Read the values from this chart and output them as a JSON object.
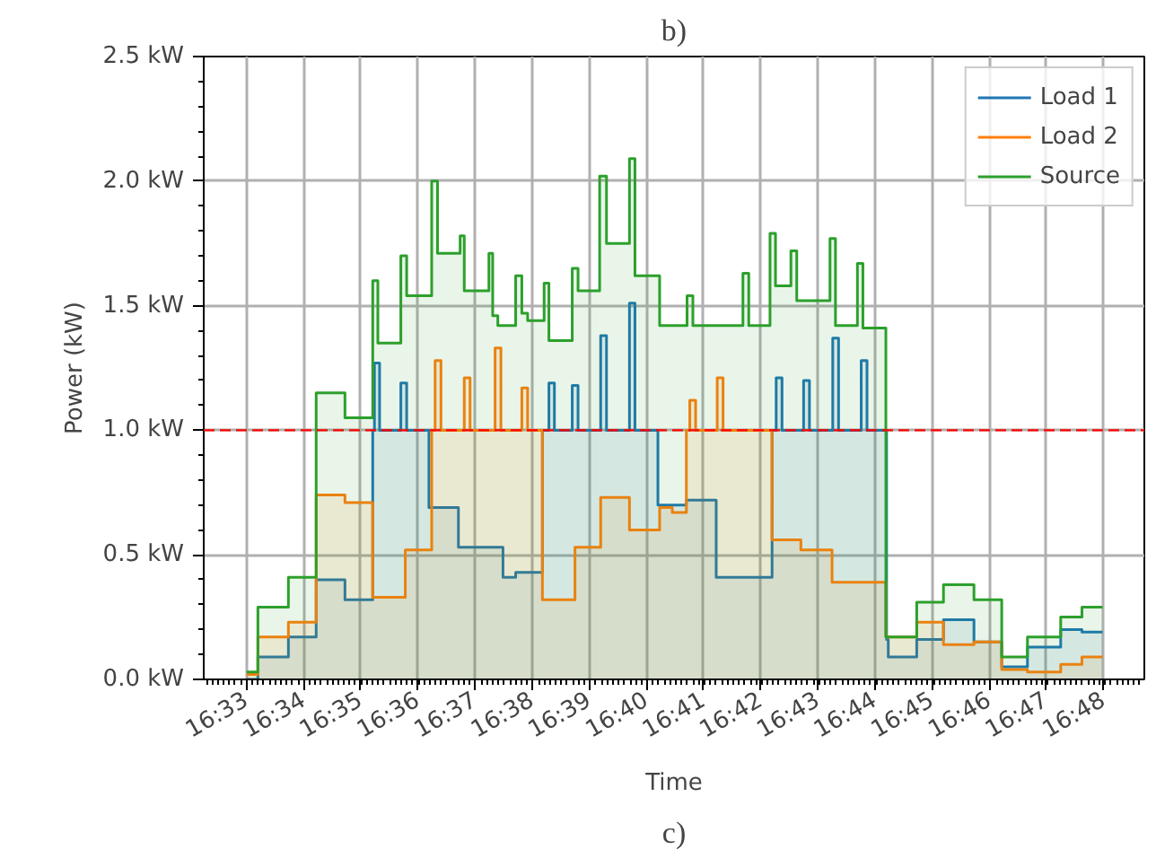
{
  "chart_data": {
    "type": "area",
    "title": "b)",
    "xlabel": "Time",
    "ylabel": "Power (kW)",
    "annotations": [
      "c)"
    ],
    "xlim": [
      16.5375,
      16.8119
    ],
    "ylim": [
      0,
      2.5
    ],
    "xticks": [
      {
        "value": 16.55,
        "label": "16:33"
      },
      {
        "value": 16.5667,
        "label": "16:34"
      },
      {
        "value": 16.5833,
        "label": "16:35"
      },
      {
        "value": 16.6,
        "label": "16:36"
      },
      {
        "value": 16.6167,
        "label": "16:37"
      },
      {
        "value": 16.6333,
        "label": "16:38"
      },
      {
        "value": 16.65,
        "label": "16:39"
      },
      {
        "value": 16.6667,
        "label": "16:40"
      },
      {
        "value": 16.6833,
        "label": "16:41"
      },
      {
        "value": 16.7,
        "label": "16:42"
      },
      {
        "value": 16.7167,
        "label": "16:43"
      },
      {
        "value": 16.7333,
        "label": "16:44"
      },
      {
        "value": 16.75,
        "label": "16:45"
      },
      {
        "value": 16.7667,
        "label": "16:46"
      },
      {
        "value": 16.7833,
        "label": "16:47"
      },
      {
        "value": 16.8,
        "label": "16:48"
      }
    ],
    "yticks": [
      {
        "value": 0,
        "label": "0.0 kW"
      },
      {
        "value": 0.5,
        "label": "0.5 kW"
      },
      {
        "value": 1.0,
        "label": "1.0 kW"
      },
      {
        "value": 1.5,
        "label": "1.5 kW"
      },
      {
        "value": 2.0,
        "label": "2.0 kW"
      },
      {
        "value": 2.5,
        "label": "2.5 kW"
      }
    ],
    "grid": true,
    "legend": "top right",
    "line_style": "solid",
    "marker": "none",
    "ref_lines": [
      {
        "axis": "y",
        "value": 1.0,
        "label": null,
        "color": "#ff0000",
        "line_style": "dashed"
      }
    ],
    "series": [
      {
        "name": "Load 1",
        "color": "#1f77b4",
        "x": [
          16.55,
          16.5533,
          16.5533,
          16.5622,
          16.5622,
          16.5703,
          16.5703,
          16.5787,
          16.5787,
          16.5868,
          16.5868,
          16.5873,
          16.5873,
          16.5888,
          16.5888,
          16.595,
          16.595,
          16.5967,
          16.5967,
          16.6032,
          16.6032,
          16.6118,
          16.6118,
          16.6248,
          16.6248,
          16.6285,
          16.6285,
          16.6363,
          16.6363,
          16.6382,
          16.6382,
          16.6398,
          16.6398,
          16.645,
          16.645,
          16.6467,
          16.6467,
          16.6533,
          16.6533,
          16.655,
          16.655,
          16.6617,
          16.6617,
          16.6633,
          16.6633,
          16.67,
          16.67,
          16.6783,
          16.6783,
          16.687,
          16.687,
          16.7033,
          16.7033,
          16.7045,
          16.7045,
          16.7062,
          16.7062,
          16.7125,
          16.7125,
          16.7142,
          16.7142,
          16.721,
          16.721,
          16.7227,
          16.7227,
          16.7293,
          16.7293,
          16.731,
          16.731,
          16.7367,
          16.7367,
          16.7372,
          16.7372,
          16.7455,
          16.7455,
          16.7533,
          16.7533,
          16.7622,
          16.7622,
          16.7703,
          16.7703,
          16.7778,
          16.7778,
          16.7875,
          16.7875,
          16.7937,
          16.7937,
          16.7997
        ],
        "values": [
          0.0,
          0.0,
          0.09,
          0.09,
          0.17,
          0.17,
          0.4,
          0.4,
          0.32,
          0.32,
          1.0,
          1.0,
          1.27,
          1.27,
          1.0,
          1.0,
          1.19,
          1.19,
          1.0,
          1.0,
          0.69,
          0.69,
          0.53,
          0.53,
          0.41,
          0.41,
          0.43,
          0.43,
          1.0,
          1.0,
          1.19,
          1.19,
          1.0,
          1.0,
          1.18,
          1.18,
          1.0,
          1.0,
          1.38,
          1.38,
          1.0,
          1.0,
          1.51,
          1.51,
          1.0,
          1.0,
          0.7,
          0.7,
          0.72,
          0.72,
          0.41,
          0.41,
          1.0,
          1.0,
          1.21,
          1.21,
          1.0,
          1.0,
          1.2,
          1.2,
          1.0,
          1.0,
          1.37,
          1.37,
          1.0,
          1.0,
          1.28,
          1.28,
          1.0,
          1.0,
          0.16,
          0.16,
          0.09,
          0.09,
          0.16,
          0.16,
          0.24,
          0.24,
          0.15,
          0.15,
          0.05,
          0.05,
          0.13,
          0.13,
          0.2,
          0.2,
          0.19,
          0.19
        ]
      },
      {
        "name": "Load 2",
        "color": "#ff7f0e",
        "x": [
          16.55,
          16.5533,
          16.5533,
          16.5622,
          16.5622,
          16.5703,
          16.5703,
          16.5787,
          16.5787,
          16.5868,
          16.5868,
          16.5963,
          16.5963,
          16.604,
          16.604,
          16.605,
          16.605,
          16.6067,
          16.6067,
          16.6135,
          16.6135,
          16.6152,
          16.6152,
          16.6225,
          16.6225,
          16.6242,
          16.6242,
          16.6303,
          16.6303,
          16.632,
          16.632,
          16.6363,
          16.6363,
          16.6458,
          16.6458,
          16.6533,
          16.6533,
          16.6617,
          16.6617,
          16.6705,
          16.6705,
          16.6742,
          16.6742,
          16.6783,
          16.6783,
          16.6793,
          16.6793,
          16.681,
          16.681,
          16.6873,
          16.6873,
          16.689,
          16.689,
          16.7033,
          16.7033,
          16.7117,
          16.7117,
          16.7208,
          16.7208,
          16.7365,
          16.7365,
          16.7455,
          16.7455,
          16.7533,
          16.7533,
          16.7622,
          16.7622,
          16.7703,
          16.7703,
          16.7778,
          16.7778,
          16.7875,
          16.7875,
          16.7937,
          16.7937,
          16.7997
        ],
        "values": [
          0.02,
          0.02,
          0.17,
          0.17,
          0.23,
          0.23,
          0.74,
          0.74,
          0.71,
          0.71,
          0.33,
          0.33,
          0.52,
          0.52,
          1.0,
          1.0,
          1.28,
          1.28,
          1.0,
          1.0,
          1.21,
          1.21,
          1.0,
          1.0,
          1.33,
          1.33,
          1.0,
          1.0,
          1.17,
          1.17,
          1.0,
          1.0,
          0.32,
          0.32,
          0.53,
          0.53,
          0.73,
          0.73,
          0.6,
          0.6,
          0.69,
          0.69,
          0.67,
          0.67,
          1.0,
          1.0,
          1.12,
          1.12,
          1.0,
          1.0,
          1.21,
          1.21,
          1.0,
          1.0,
          0.56,
          0.56,
          0.52,
          0.52,
          0.39,
          0.39,
          0.17,
          0.17,
          0.23,
          0.23,
          0.14,
          0.14,
          0.15,
          0.15,
          0.04,
          0.04,
          0.03,
          0.03,
          0.06,
          0.06,
          0.09,
          0.09
        ]
      },
      {
        "name": "Source",
        "color": "#2ca02c",
        "x": [
          16.55,
          16.5533,
          16.5533,
          16.5622,
          16.5622,
          16.5703,
          16.5703,
          16.5787,
          16.5787,
          16.5868,
          16.5868,
          16.5883,
          16.5883,
          16.595,
          16.595,
          16.5967,
          16.5967,
          16.604,
          16.604,
          16.6057,
          16.6057,
          16.6123,
          16.6123,
          16.6135,
          16.6135,
          16.6207,
          16.6207,
          16.6218,
          16.6218,
          16.6233,
          16.6233,
          16.6285,
          16.6285,
          16.6303,
          16.6303,
          16.632,
          16.632,
          16.6368,
          16.6368,
          16.6382,
          16.6382,
          16.645,
          16.645,
          16.6467,
          16.6467,
          16.653,
          16.653,
          16.655,
          16.655,
          16.6617,
          16.6617,
          16.6633,
          16.6633,
          16.6705,
          16.6705,
          16.6785,
          16.6785,
          16.6802,
          16.6802,
          16.6948,
          16.6948,
          16.6965,
          16.6965,
          16.7027,
          16.7027,
          16.7043,
          16.7043,
          16.7088,
          16.7088,
          16.7105,
          16.7105,
          16.7202,
          16.7202,
          16.7218,
          16.7218,
          16.7282,
          16.7282,
          16.7298,
          16.7298,
          16.7365,
          16.7365,
          16.7455,
          16.7455,
          16.7533,
          16.7533,
          16.7622,
          16.7622,
          16.7703,
          16.7703,
          16.7778,
          16.7778,
          16.7875,
          16.7875,
          16.7937,
          16.7937,
          16.7997
        ],
        "values": [
          0.03,
          0.03,
          0.29,
          0.29,
          0.41,
          0.41,
          1.15,
          1.15,
          1.05,
          1.05,
          1.6,
          1.6,
          1.35,
          1.35,
          1.7,
          1.7,
          1.54,
          1.54,
          2.0,
          2.0,
          1.71,
          1.71,
          1.78,
          1.78,
          1.56,
          1.56,
          1.71,
          1.71,
          1.46,
          1.46,
          1.42,
          1.42,
          1.62,
          1.62,
          1.47,
          1.47,
          1.44,
          1.44,
          1.59,
          1.59,
          1.36,
          1.36,
          1.65,
          1.65,
          1.56,
          1.56,
          2.02,
          2.02,
          1.75,
          1.75,
          2.09,
          2.09,
          1.62,
          1.62,
          1.42,
          1.42,
          1.54,
          1.54,
          1.42,
          1.42,
          1.63,
          1.63,
          1.42,
          1.42,
          1.79,
          1.79,
          1.58,
          1.58,
          1.72,
          1.72,
          1.52,
          1.52,
          1.77,
          1.77,
          1.42,
          1.42,
          1.67,
          1.67,
          1.41,
          1.41,
          0.17,
          0.17,
          0.31,
          0.31,
          0.38,
          0.38,
          0.32,
          0.32,
          0.09,
          0.09,
          0.17,
          0.17,
          0.25,
          0.25,
          0.29,
          0.29
        ]
      }
    ]
  }
}
